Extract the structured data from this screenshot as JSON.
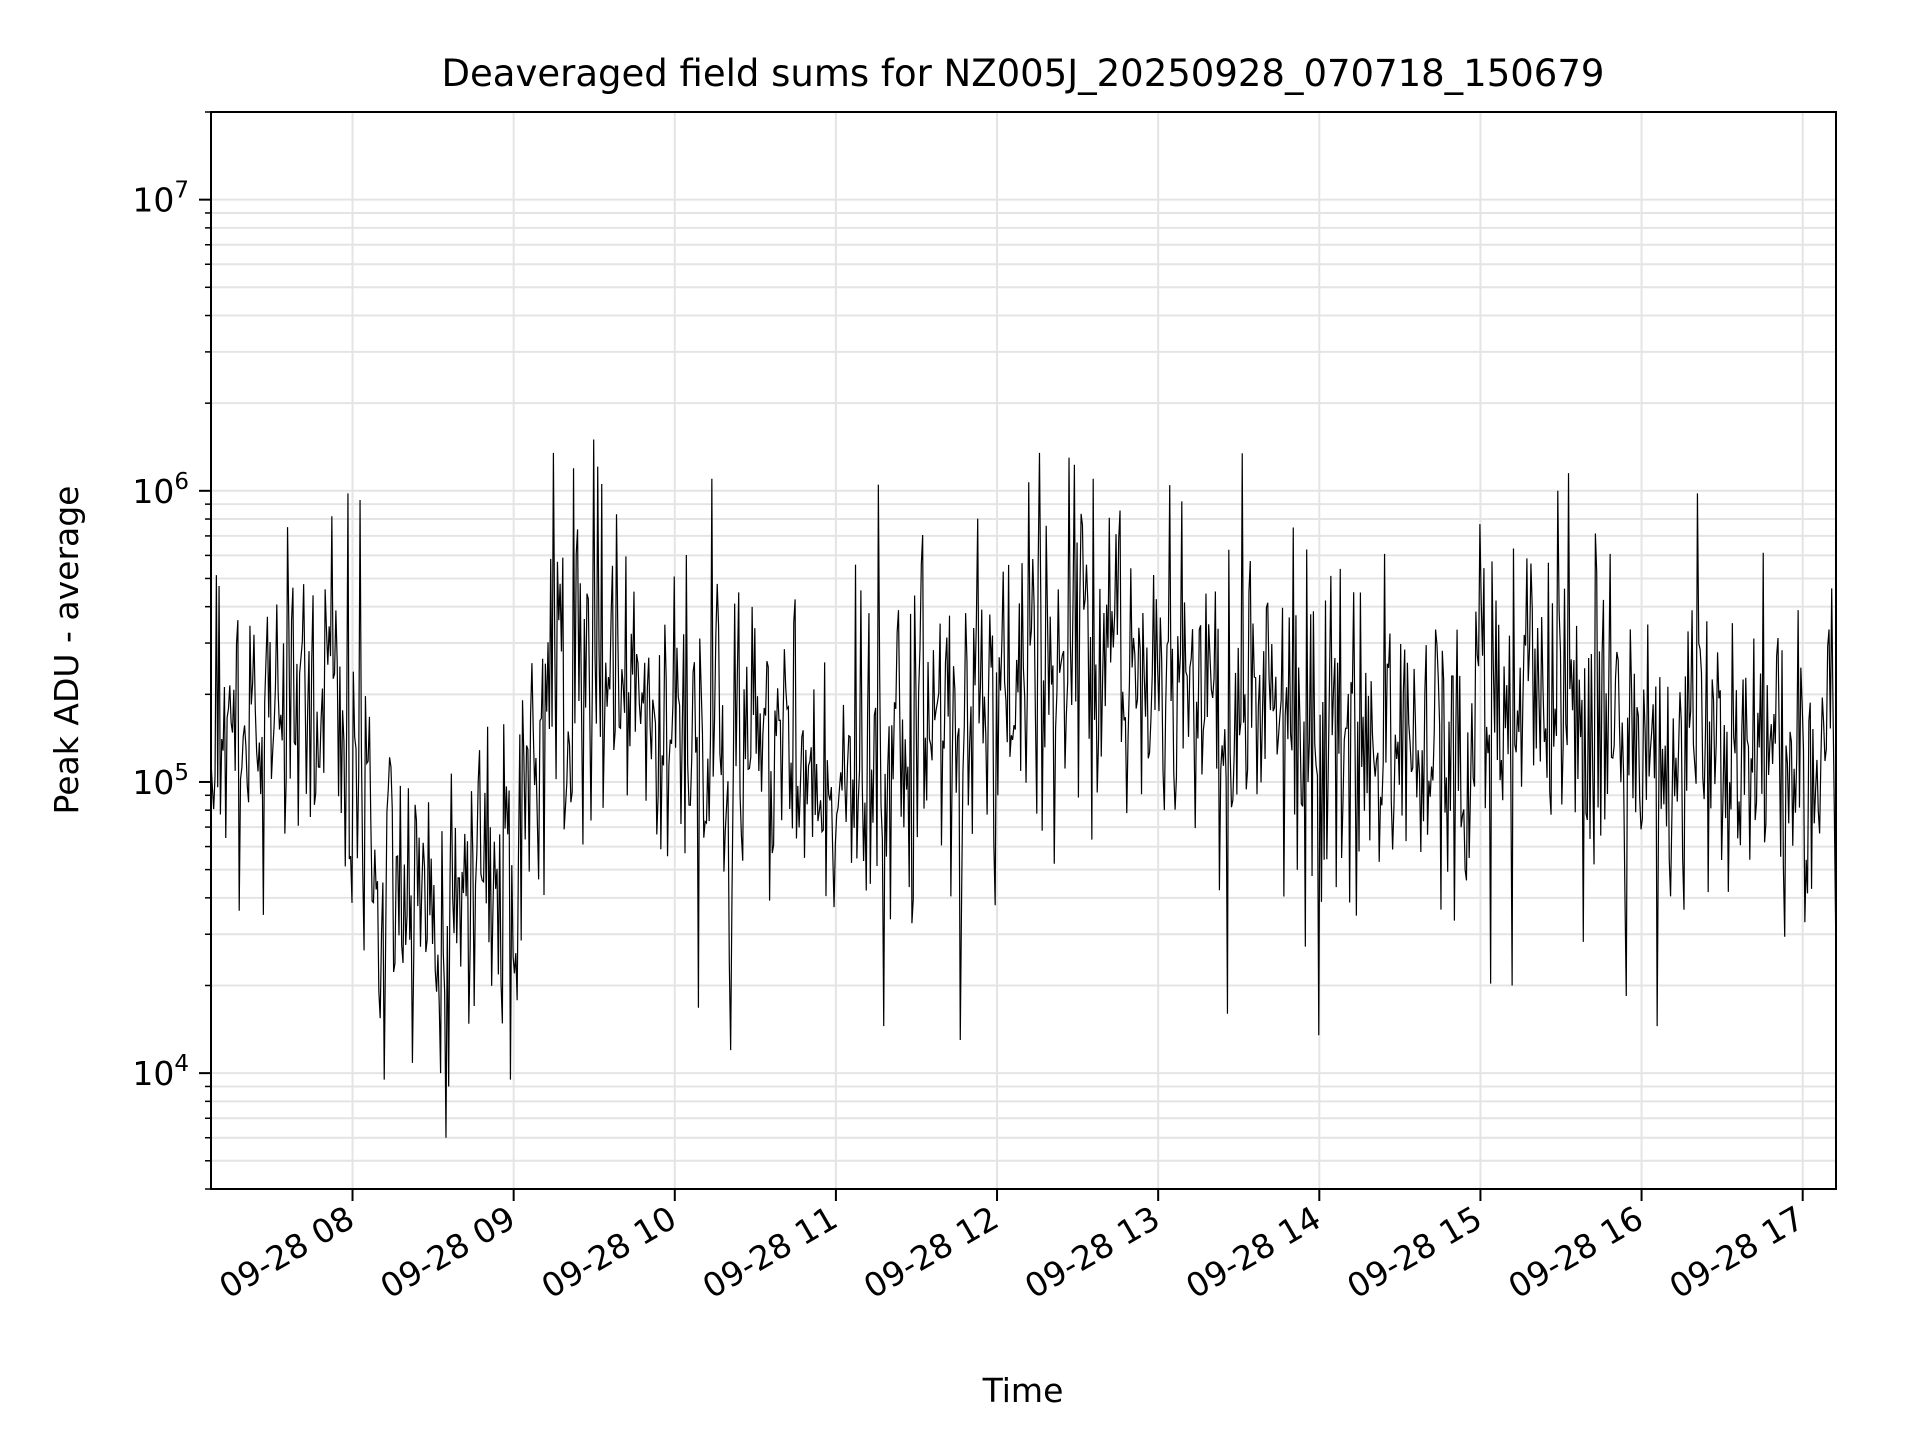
{
  "chart_data": {
    "type": "line",
    "title": "Deaveraged field sums for NZ005J_20250928_070718_150679",
    "xlabel": "Time",
    "ylabel": "Peak ADU - average",
    "yscale": "log",
    "ylim": [
      4000,
      20000000
    ],
    "xlim_hours": [
      7.1217,
      17.2067
    ],
    "x_ticks": [
      {
        "hour": 8,
        "label": "09-28 08"
      },
      {
        "hour": 9,
        "label": "09-28 09"
      },
      {
        "hour": 10,
        "label": "09-28 10"
      },
      {
        "hour": 11,
        "label": "09-28 11"
      },
      {
        "hour": 12,
        "label": "09-28 12"
      },
      {
        "hour": 13,
        "label": "09-28 13"
      },
      {
        "hour": 14,
        "label": "09-28 14"
      },
      {
        "hour": 15,
        "label": "09-28 15"
      },
      {
        "hour": 16,
        "label": "09-28 16"
      },
      {
        "hour": 17,
        "label": "09-28 17"
      }
    ],
    "y_ticks": [
      {
        "value": 10000,
        "base": "10",
        "exp": "4"
      },
      {
        "value": 100000,
        "base": "10",
        "exp": "5"
      },
      {
        "value": 1000000,
        "base": "10",
        "exp": "6"
      },
      {
        "value": 10000000,
        "base": "10",
        "exp": "7"
      }
    ],
    "grid": true,
    "line_color": "#000000",
    "grid_color": "#e4e4e4",
    "series": [
      {
        "name": "Peak ADU - average",
        "baseline_by_hour": [
          [
            7.12,
            150000
          ],
          [
            7.9,
            200000
          ],
          [
            8.15,
            55000
          ],
          [
            8.6,
            40000
          ],
          [
            9.0,
            60000
          ],
          [
            9.4,
            280000
          ],
          [
            9.7,
            180000
          ],
          [
            10.0,
            140000
          ],
          [
            10.6,
            120000
          ],
          [
            11.0,
            110000
          ],
          [
            11.6,
            140000
          ],
          [
            12.0,
            170000
          ],
          [
            12.5,
            280000
          ],
          [
            12.9,
            230000
          ],
          [
            13.3,
            210000
          ],
          [
            13.7,
            190000
          ],
          [
            14.0,
            160000
          ],
          [
            14.5,
            130000
          ],
          [
            15.0,
            140000
          ],
          [
            15.5,
            260000
          ],
          [
            15.7,
            160000
          ],
          [
            16.0,
            120000
          ],
          [
            16.5,
            150000
          ],
          [
            17.21,
            140000
          ]
        ],
        "spread_dex": 0.28,
        "point_interval_minutes": 0.5,
        "peaks": [
          [
            7.6,
            750000
          ],
          [
            7.97,
            980000
          ],
          [
            8.05,
            930000
          ],
          [
            9.25,
            1350000
          ],
          [
            9.5,
            1500000
          ],
          [
            10.23,
            1100000
          ],
          [
            11.26,
            1050000
          ],
          [
            12.26,
            1350000
          ],
          [
            12.45,
            1300000
          ],
          [
            12.6,
            1100000
          ],
          [
            13.15,
            920000
          ],
          [
            14.0,
            900000
          ],
          [
            15.55,
            1150000
          ],
          [
            15.48,
            1000000
          ],
          [
            16.35,
            980000
          ]
        ],
        "troughs": [
          [
            8.2,
            9500
          ],
          [
            8.55,
            10000
          ],
          [
            8.58,
            6000
          ],
          [
            8.6,
            9000
          ],
          [
            8.98,
            9500
          ],
          [
            10.35,
            12000
          ],
          [
            11.3,
            14500
          ],
          [
            11.77,
            13000
          ],
          [
            13.43,
            16000
          ],
          [
            14.0,
            13500
          ],
          [
            15.2,
            20000
          ],
          [
            16.1,
            14500
          ]
        ]
      }
    ]
  }
}
